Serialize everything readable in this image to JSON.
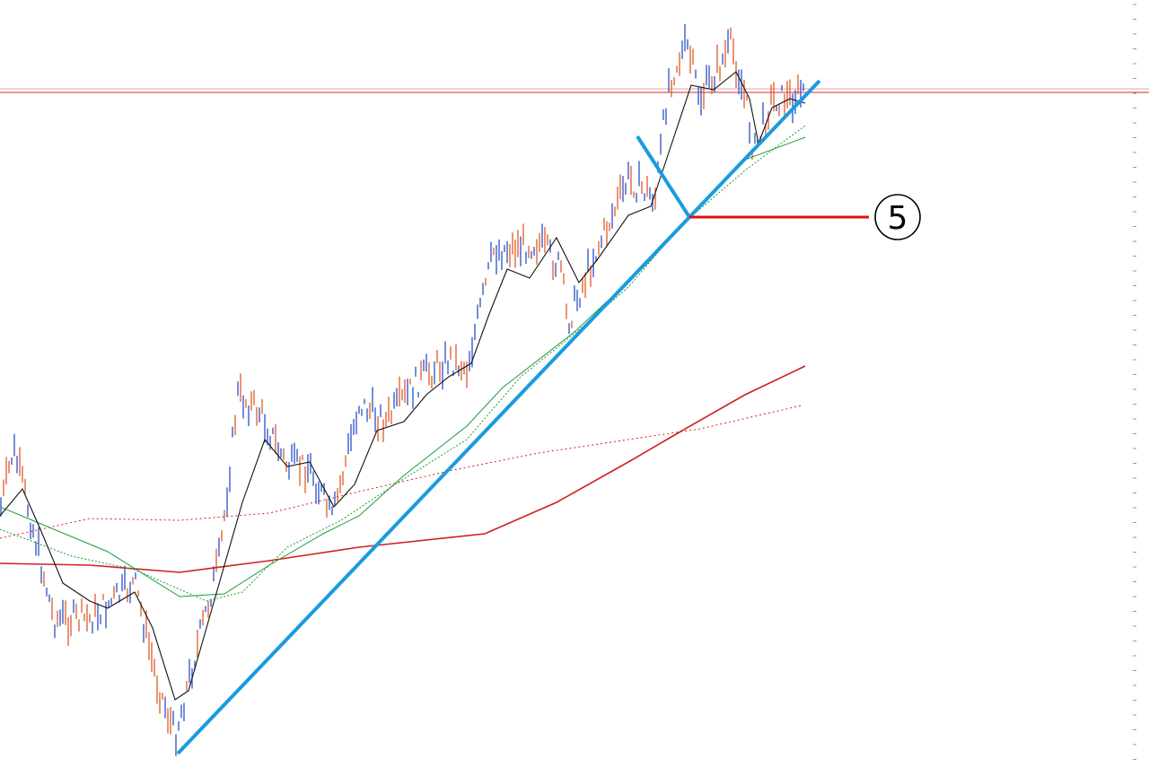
{
  "annotation": {
    "label": "5"
  }
}
